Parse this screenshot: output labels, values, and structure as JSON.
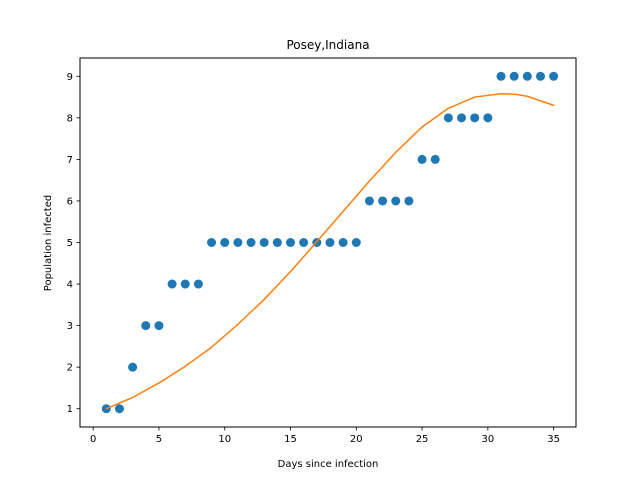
{
  "chart_data": {
    "type": "scatter",
    "title": "Posey,Indiana",
    "xlabel": "Days since infection",
    "ylabel": "Population infected",
    "xlim": [
      -1,
      36.7
    ],
    "ylim": [
      0.56,
      9.44
    ],
    "xticks": [
      0,
      5,
      10,
      15,
      20,
      25,
      30,
      35
    ],
    "yticks": [
      1,
      2,
      3,
      4,
      5,
      6,
      7,
      8,
      9
    ],
    "grid": false,
    "legend": "none",
    "series": [
      {
        "kind": "scatter",
        "color": "#1f77b4",
        "x": [
          1,
          2,
          3,
          4,
          5,
          6,
          7,
          8,
          9,
          10,
          11,
          12,
          13,
          14,
          15,
          16,
          17,
          18,
          19,
          20,
          21,
          22,
          23,
          24,
          25,
          26,
          27,
          28,
          29,
          30,
          31,
          32,
          33,
          34,
          35
        ],
        "y": [
          1,
          1,
          2,
          3,
          3,
          4,
          4,
          4,
          5,
          5,
          5,
          5,
          5,
          5,
          5,
          5,
          5,
          5,
          5,
          5,
          6,
          6,
          6,
          6,
          7,
          7,
          8,
          8,
          8,
          8,
          9,
          9,
          9,
          9,
          9
        ]
      },
      {
        "kind": "line",
        "color": "#ff7f0e",
        "x": [
          1,
          3,
          5,
          7,
          9,
          11,
          13,
          15,
          17,
          19,
          21,
          23,
          25,
          27,
          29,
          31,
          32,
          33,
          35
        ],
        "y": [
          1.0,
          1.27,
          1.62,
          2.02,
          2.48,
          3.03,
          3.63,
          4.3,
          5.02,
          5.75,
          6.48,
          7.17,
          7.78,
          8.23,
          8.5,
          8.58,
          8.57,
          8.52,
          8.3
        ]
      }
    ]
  }
}
